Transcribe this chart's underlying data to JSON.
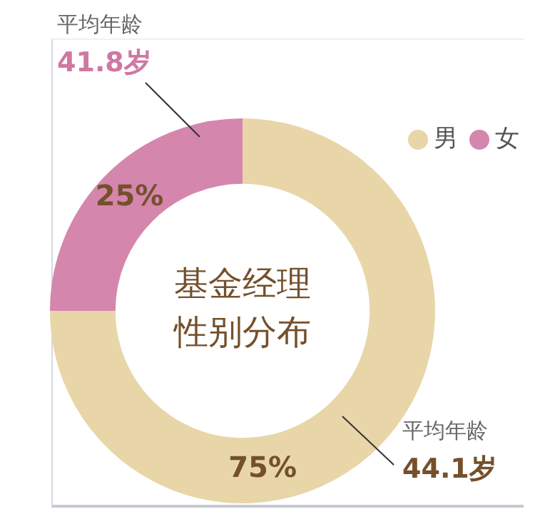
{
  "chart_data": {
    "type": "donut",
    "title": "基金经理性别分布",
    "categories": [
      "男",
      "女"
    ],
    "values": [
      75,
      25
    ],
    "colors": [
      "#e8d6a9",
      "#d586ad"
    ],
    "value_labels": [
      "75%",
      "25%"
    ],
    "legend": "top right",
    "annotations": [
      "平均年龄",
      "44.1岁",
      "平均年龄",
      "41.8岁"
    ]
  }
}
